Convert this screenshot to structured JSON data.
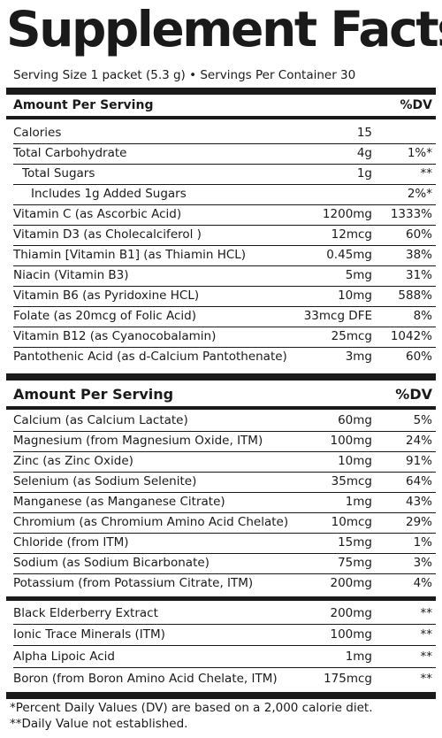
{
  "title": "Supplement Facts",
  "serving_line": "Serving Size 1 packet (5.3 g) • Servings Per Container 30",
  "section1": {
    "header_left": "Amount Per Serving",
    "header_right": "%DV",
    "rows": [
      {
        "name": "Calories",
        "amount": "15",
        "dv": ""
      },
      {
        "name": "Total Carbohydrate",
        "amount": "4g",
        "dv": "1%*"
      },
      {
        "name": "Total Sugars",
        "amount": "1g",
        "dv": "**"
      },
      {
        "name": "Includes 1g Added Sugars",
        "amount": "",
        "dv": "2%*"
      },
      {
        "name": "Vitamin C (as Ascorbic Acid)",
        "amount": "1200mg",
        "dv": "1333%"
      },
      {
        "name": "Vitamin D3 (as Cholecalciferol )",
        "amount": "12mcg",
        "dv": "60%"
      },
      {
        "name": "Thiamin [Vitamin B1] (as Thiamin HCL)",
        "amount": "0.45mg",
        "dv": "38%"
      },
      {
        "name": "Niacin (Vitamin B3)",
        "amount": "5mg",
        "dv": "31%"
      },
      {
        "name": "Vitamin B6 (as Pyridoxine HCL)",
        "amount": "10mg",
        "dv": "588%"
      },
      {
        "name": "Folate (as 20mcg of Folic Acid)",
        "amount": "33mcg DFE",
        "dv": "8%"
      },
      {
        "name": "Vitamin B12 (as Cyanocobalamin)",
        "amount": "25mcg",
        "dv": "1042%"
      },
      {
        "name": "Pantothenic Acid (as d-Calcium Pantothenate)",
        "amount": "3mg",
        "dv": "60%"
      }
    ]
  },
  "section2": {
    "header_left": "Amount Per Serving",
    "header_right": "%DV",
    "rows": [
      {
        "name": "Calcium (as Calcium Lactate)",
        "amount": "60mg",
        "dv": "5%"
      },
      {
        "name": "Magnesium (from Magnesium Oxide, ITM)",
        "amount": "100mg",
        "dv": "24%"
      },
      {
        "name": "Zinc (as Zinc Oxide)",
        "amount": "10mg",
        "dv": "91%"
      },
      {
        "name": "Selenium (as Sodium Selenite)",
        "amount": "35mcg",
        "dv": "64%"
      },
      {
        "name": "Manganese (as Manganese Citrate)",
        "amount": "1mg",
        "dv": "43%"
      },
      {
        "name": "Chromium (as Chromium Amino Acid Chelate)",
        "amount": "10mcg",
        "dv": "29%"
      },
      {
        "name": "Chloride (from ITM)",
        "amount": "15mg",
        "dv": "1%"
      },
      {
        "name": "Sodium (as Sodium Bicarbonate)",
        "amount": "75mg",
        "dv": "3%"
      },
      {
        "name": "Potassium (from Potassium Citrate, ITM)",
        "amount": "200mg",
        "dv": "4%"
      }
    ]
  },
  "section3": {
    "rows": [
      {
        "name": "Black Elderberry Extract",
        "amount": "200mg",
        "dv": "**"
      },
      {
        "name": "Ionic Trace Minerals (ITM)",
        "amount": "100mg",
        "dv": "**"
      },
      {
        "name": "Alpha Lipoic Acid",
        "amount": "1mg",
        "dv": "**"
      },
      {
        "name": "Boron (from Boron Amino Acid Chelate, ITM)",
        "amount": "175mcg",
        "dv": "**"
      }
    ]
  },
  "footnotes": [
    "*Percent Daily Values (DV) are based on a 2,000 calorie diet.",
    "**Daily Value not established."
  ]
}
